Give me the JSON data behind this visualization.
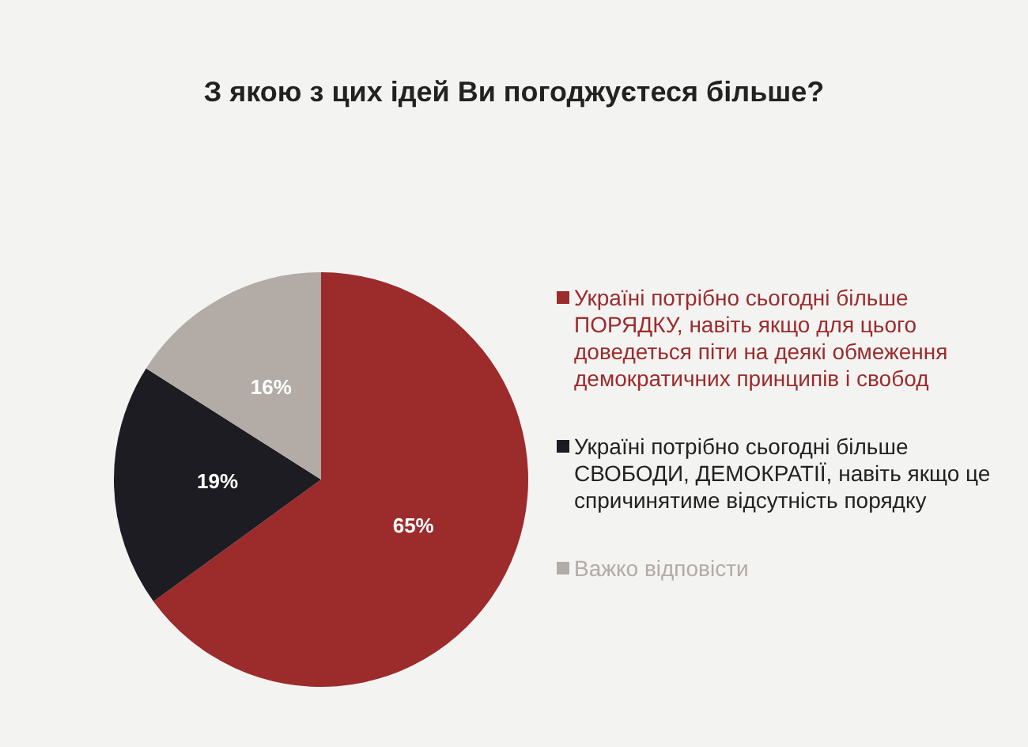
{
  "chart_data": {
    "type": "pie",
    "title": "З якою з цих ідей Ви погоджуєтеся більше?",
    "categories": [
      "Україні потрібно сьогодні більше ПОРЯДКУ, навіть якщо для цього доведеться піти на деякі обмеження демократичних принципів і свобод",
      "Україні потрібно сьогодні більше СВОБОДИ, ДЕМОКРАТІЇ, навіть якщо це спричинятиме відсутність порядку",
      "Важко відповісти"
    ],
    "values": [
      65,
      19,
      16
    ],
    "colors": [
      "#9c2b2c",
      "#1c1c22",
      "#b3aba5"
    ],
    "value_labels": [
      "65%",
      "19%",
      "16%"
    ],
    "legend": "right"
  }
}
